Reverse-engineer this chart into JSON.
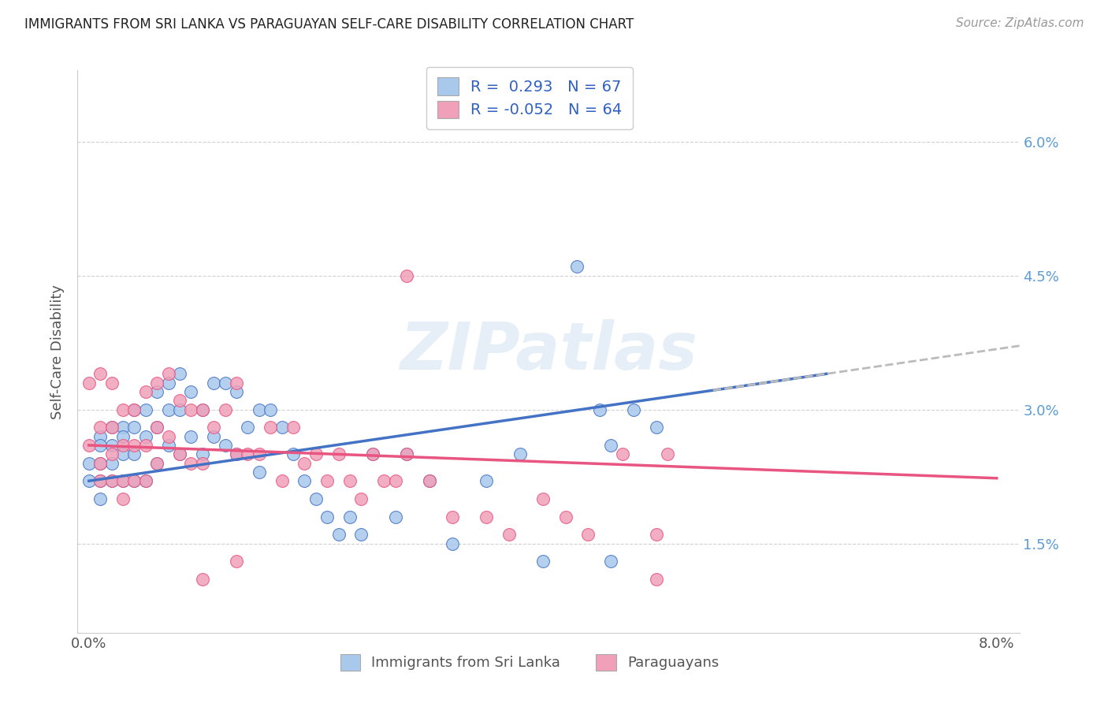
{
  "title": "IMMIGRANTS FROM SRI LANKA VS PARAGUAYAN SELF-CARE DISABILITY CORRELATION CHART",
  "source": "Source: ZipAtlas.com",
  "ylabel": "Self-Care Disability",
  "legend_label1": "R =  0.293   N = 67",
  "legend_label2": "R = -0.052   N = 64",
  "legend_label_bottom1": "Immigrants from Sri Lanka",
  "legend_label_bottom2": "Paraguayans",
  "color_blue": "#A8C8EC",
  "color_pink": "#F0A0B8",
  "color_blue_line": "#4472C4",
  "color_pink_line": "#E85580",
  "color_dashed": "#BBBBBB",
  "watermark": "ZIPatlas",
  "blue_points_x": [
    0.0,
    0.0,
    0.001,
    0.001,
    0.001,
    0.001,
    0.001,
    0.002,
    0.002,
    0.002,
    0.002,
    0.003,
    0.003,
    0.003,
    0.003,
    0.004,
    0.004,
    0.004,
    0.004,
    0.005,
    0.005,
    0.005,
    0.006,
    0.006,
    0.006,
    0.007,
    0.007,
    0.007,
    0.008,
    0.008,
    0.008,
    0.009,
    0.009,
    0.01,
    0.01,
    0.011,
    0.011,
    0.012,
    0.012,
    0.013,
    0.013,
    0.014,
    0.015,
    0.015,
    0.016,
    0.017,
    0.018,
    0.019,
    0.02,
    0.021,
    0.022,
    0.023,
    0.024,
    0.025,
    0.027,
    0.028,
    0.03,
    0.032,
    0.035,
    0.038,
    0.04,
    0.043,
    0.045,
    0.046,
    0.046,
    0.048,
    0.05
  ],
  "blue_points_y": [
    0.024,
    0.022,
    0.027,
    0.026,
    0.024,
    0.022,
    0.02,
    0.028,
    0.026,
    0.024,
    0.022,
    0.028,
    0.027,
    0.025,
    0.022,
    0.03,
    0.028,
    0.025,
    0.022,
    0.03,
    0.027,
    0.022,
    0.032,
    0.028,
    0.024,
    0.033,
    0.03,
    0.026,
    0.034,
    0.03,
    0.025,
    0.032,
    0.027,
    0.03,
    0.025,
    0.033,
    0.027,
    0.033,
    0.026,
    0.032,
    0.025,
    0.028,
    0.03,
    0.023,
    0.03,
    0.028,
    0.025,
    0.022,
    0.02,
    0.018,
    0.016,
    0.018,
    0.016,
    0.025,
    0.018,
    0.025,
    0.022,
    0.015,
    0.022,
    0.025,
    0.013,
    0.046,
    0.03,
    0.013,
    0.026,
    0.03,
    0.028
  ],
  "pink_points_x": [
    0.0,
    0.0,
    0.001,
    0.001,
    0.001,
    0.001,
    0.002,
    0.002,
    0.002,
    0.002,
    0.003,
    0.003,
    0.003,
    0.003,
    0.004,
    0.004,
    0.004,
    0.005,
    0.005,
    0.005,
    0.006,
    0.006,
    0.006,
    0.007,
    0.007,
    0.008,
    0.008,
    0.009,
    0.009,
    0.01,
    0.01,
    0.011,
    0.012,
    0.013,
    0.013,
    0.014,
    0.015,
    0.016,
    0.017,
    0.018,
    0.019,
    0.02,
    0.021,
    0.022,
    0.023,
    0.024,
    0.025,
    0.026,
    0.027,
    0.028,
    0.03,
    0.032,
    0.035,
    0.037,
    0.04,
    0.042,
    0.044,
    0.047,
    0.05,
    0.051,
    0.028,
    0.013,
    0.01,
    0.05
  ],
  "pink_points_y": [
    0.033,
    0.026,
    0.034,
    0.028,
    0.024,
    0.022,
    0.033,
    0.028,
    0.025,
    0.022,
    0.03,
    0.026,
    0.022,
    0.02,
    0.03,
    0.026,
    0.022,
    0.032,
    0.026,
    0.022,
    0.033,
    0.028,
    0.024,
    0.034,
    0.027,
    0.031,
    0.025,
    0.03,
    0.024,
    0.03,
    0.024,
    0.028,
    0.03,
    0.033,
    0.025,
    0.025,
    0.025,
    0.028,
    0.022,
    0.028,
    0.024,
    0.025,
    0.022,
    0.025,
    0.022,
    0.02,
    0.025,
    0.022,
    0.022,
    0.025,
    0.022,
    0.018,
    0.018,
    0.016,
    0.02,
    0.018,
    0.016,
    0.025,
    0.016,
    0.025,
    0.045,
    0.013,
    0.011,
    0.011
  ]
}
